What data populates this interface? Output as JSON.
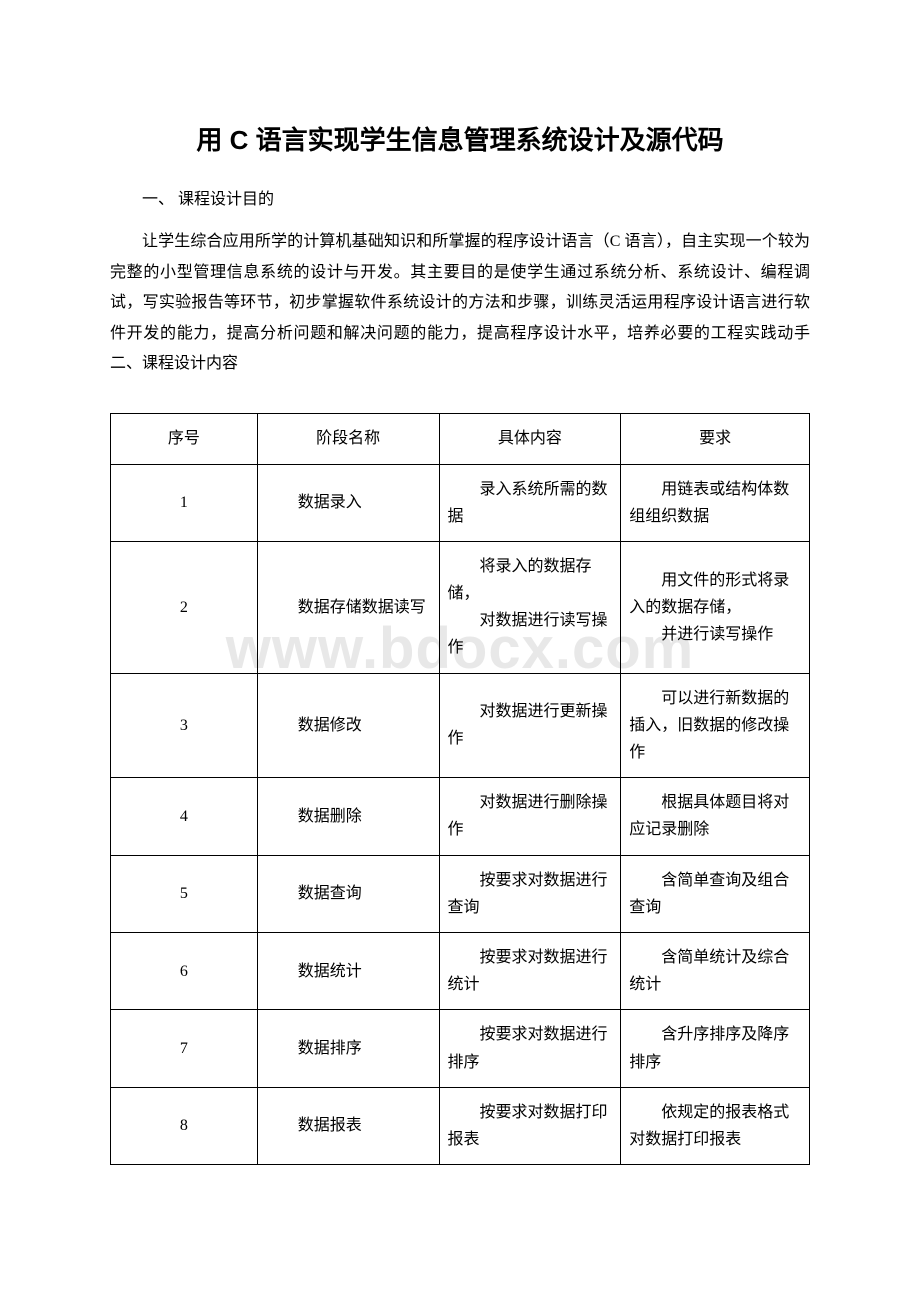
{
  "title": "用 C 语言实现学生信息管理系统设计及源代码",
  "section1_heading": "一、 课程设计目的",
  "section1_body": "让学生综合应用所学的计算机基础知识和所掌握的程序设计语言（C 语言），自主实现一个较为完整的小型管理信息系统的设计与开发。其主要目的是使学生通过系统分析、系统设计、编程调试，写实验报告等环节，初步掌握软件系统设计的方法和步骤，训练灵活运用程序设计语言进行软件开发的能力，提高分析问题和解决问题的能力，提高程序设计水平，培养必要的工程实践动手 二、课程设计内容",
  "watermark": "www.bdocx.com",
  "table": {
    "columns": [
      "序号",
      "阶段名称",
      "具体内容",
      "要求"
    ],
    "rows": [
      {
        "seq": "1",
        "phase": "数据录入",
        "content": [
          "录入系统所需的数据"
        ],
        "req": [
          "用链表或结构体数组组织数据"
        ]
      },
      {
        "seq": "2",
        "phase": "数据存储数据读写",
        "content": [
          "将录入的数据存储，",
          "对数据进行读写操作"
        ],
        "req": [
          "用文件的形式将录入的数据存储，",
          "并进行读写操作"
        ]
      },
      {
        "seq": "3",
        "phase": "数据修改",
        "content": [
          "对数据进行更新操作"
        ],
        "req": [
          "可以进行新数据的插入，旧数据的修改操作"
        ]
      },
      {
        "seq": "4",
        "phase": "数据删除",
        "content": [
          "对数据进行删除操作"
        ],
        "req": [
          "根据具体题目将对应记录删除"
        ]
      },
      {
        "seq": "5",
        "phase": "数据查询",
        "content": [
          "按要求对数据进行查询"
        ],
        "req": [
          "含简单查询及组合查询"
        ]
      },
      {
        "seq": "6",
        "phase": "数据统计",
        "content": [
          "按要求对数据进行统计"
        ],
        "req": [
          "含简单统计及综合统计"
        ]
      },
      {
        "seq": "7",
        "phase": "数据排序",
        "content": [
          "按要求对数据进行排序"
        ],
        "req": [
          "含升序排序及降序排序"
        ]
      },
      {
        "seq": "8",
        "phase": "数据报表",
        "content": [
          "按要求对数据打印报表"
        ],
        "req": [
          "依规定的报表格式对数据打印报表"
        ]
      }
    ]
  }
}
